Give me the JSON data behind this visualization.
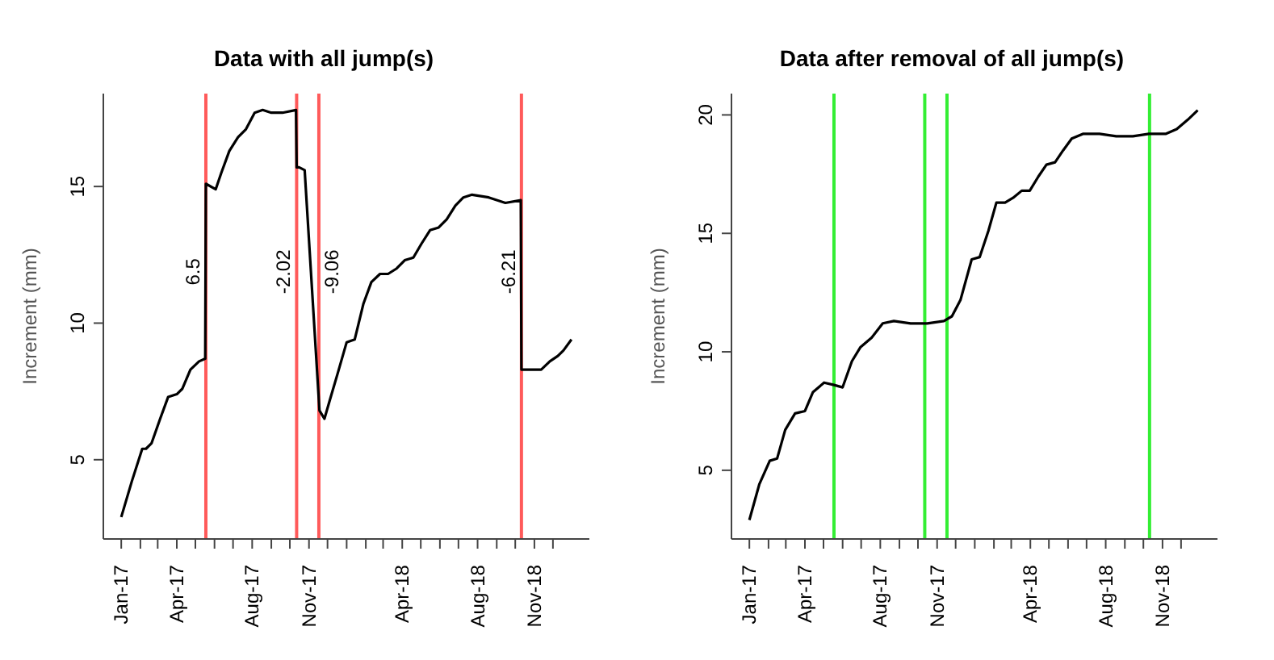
{
  "chart_data": [
    {
      "type": "line",
      "title": "Data with all jump(s)",
      "ylabel": "Increment (mm)",
      "color": "#000000",
      "line_style": "solid",
      "x": [
        "2017-01-01",
        "2017-01-18",
        "2017-02-04",
        "2017-02-10",
        "2017-02-19",
        "2017-03-05",
        "2017-03-18",
        "2017-04-01",
        "2017-04-10",
        "2017-04-23",
        "2017-05-07",
        "2017-05-17",
        "2017-05-18",
        "2017-06-03",
        "2017-06-12",
        "2017-06-25",
        "2017-07-09",
        "2017-07-22",
        "2017-08-05",
        "2017-08-18",
        "2017-09-01",
        "2017-09-19",
        "2017-10-11",
        "2017-10-12",
        "2017-10-16",
        "2017-10-25",
        "2017-11-18",
        "2017-11-26",
        "2017-12-05",
        "2017-12-18",
        "2018-01-01",
        "2018-01-14",
        "2018-01-28",
        "2018-02-10",
        "2018-02-24",
        "2018-03-09",
        "2018-03-23",
        "2018-04-05",
        "2018-04-19",
        "2018-05-02",
        "2018-05-16",
        "2018-05-30",
        "2018-06-12",
        "2018-06-26",
        "2018-07-09",
        "2018-07-23",
        "2018-08-19",
        "2018-09-15",
        "2018-10-10",
        "2018-10-11",
        "2018-11-12",
        "2018-11-26",
        "2018-12-09",
        "2018-12-18",
        "2018-12-31"
      ],
      "values": [
        2.9,
        4.2,
        5.4,
        5.4,
        5.6,
        6.5,
        7.3,
        7.4,
        7.6,
        8.3,
        8.6,
        8.7,
        15.1,
        14.9,
        15.5,
        16.3,
        16.8,
        17.1,
        17.7,
        17.8,
        17.7,
        17.7,
        17.8,
        15.7,
        15.7,
        15.6,
        6.8,
        6.5,
        7.2,
        8.2,
        9.3,
        9.4,
        10.7,
        11.5,
        11.8,
        11.8,
        12.0,
        12.3,
        12.4,
        12.9,
        13.4,
        13.5,
        13.8,
        14.3,
        14.6,
        14.7,
        14.6,
        14.4,
        14.5,
        8.3,
        8.3,
        8.6,
        8.8,
        9.0,
        9.4
      ],
      "xlim": [
        "2016-12-03",
        "2019-01-29"
      ],
      "ylim": [
        2.1,
        18.4
      ],
      "yticks": [
        5,
        10,
        15
      ],
      "xticks": [
        {
          "value": "2017-01",
          "label": "Jan-17"
        },
        {
          "value": "2017-02",
          "label": null
        },
        {
          "value": "2017-03",
          "label": null
        },
        {
          "value": "2017-04",
          "label": "Apr-17"
        },
        {
          "value": "2017-05",
          "label": null
        },
        {
          "value": "2017-06",
          "label": null
        },
        {
          "value": "2017-07",
          "label": null
        },
        {
          "value": "2017-08",
          "label": "Aug-17"
        },
        {
          "value": "2017-09",
          "label": null
        },
        {
          "value": "2017-10",
          "label": null
        },
        {
          "value": "2017-11",
          "label": "Nov-17"
        },
        {
          "value": "2017-12",
          "label": null
        },
        {
          "value": "2018-01",
          "label": null
        },
        {
          "value": "2018-02",
          "label": null
        },
        {
          "value": "2018-03",
          "label": null
        },
        {
          "value": "2018-04",
          "label": "Apr-18"
        },
        {
          "value": "2018-05",
          "label": null
        },
        {
          "value": "2018-06",
          "label": null
        },
        {
          "value": "2018-07",
          "label": null
        },
        {
          "value": "2018-08",
          "label": "Aug-18"
        },
        {
          "value": "2018-09",
          "label": null
        },
        {
          "value": "2018-10",
          "label": null
        },
        {
          "value": "2018-11",
          "label": "Nov-18"
        },
        {
          "value": "2018-12",
          "label": null
        }
      ],
      "ref_lines": [
        {
          "axis": "x",
          "value": "2017-05-18",
          "label": "6.5",
          "color": "#ff5a5a"
        },
        {
          "axis": "x",
          "value": "2017-10-12",
          "label": "-2.02",
          "color": "#ff5a5a"
        },
        {
          "axis": "x",
          "value": "2017-11-17",
          "label": "-9.06",
          "color": "#ff5a5a"
        },
        {
          "axis": "x",
          "value": "2018-10-11",
          "label": "-6.21",
          "color": "#ff5a5a"
        }
      ]
    },
    {
      "type": "line",
      "title": "Data after removal of all jump(s)",
      "ylabel": "Increment (mm)",
      "color": "#000000",
      "line_style": "solid",
      "x": [
        "2017-01-01",
        "2017-01-17",
        "2017-02-03",
        "2017-02-15",
        "2017-02-28",
        "2017-03-16",
        "2017-04-01",
        "2017-04-14",
        "2017-05-02",
        "2017-05-18",
        "2017-06-01",
        "2017-06-16",
        "2017-06-30",
        "2017-07-18",
        "2017-08-05",
        "2017-08-23",
        "2017-09-19",
        "2017-10-16",
        "2017-11-12",
        "2017-11-25",
        "2017-12-09",
        "2017-12-27",
        "2018-01-09",
        "2018-01-23",
        "2018-02-05",
        "2018-02-19",
        "2018-03-04",
        "2018-03-18",
        "2018-03-31",
        "2018-04-14",
        "2018-04-27",
        "2018-05-11",
        "2018-05-24",
        "2018-06-07",
        "2018-06-25",
        "2018-07-22",
        "2018-08-18",
        "2018-09-14",
        "2018-10-10",
        "2018-11-06",
        "2018-11-24",
        "2018-12-12",
        "2018-12-28"
      ],
      "values": [
        2.9,
        4.4,
        5.4,
        5.5,
        6.7,
        7.4,
        7.5,
        8.3,
        8.7,
        8.6,
        8.5,
        9.6,
        10.2,
        10.6,
        11.2,
        11.3,
        11.2,
        11.2,
        11.3,
        11.5,
        12.2,
        13.9,
        14.0,
        15.1,
        16.3,
        16.3,
        16.5,
        16.8,
        16.8,
        17.4,
        17.9,
        18.0,
        18.5,
        19.0,
        19.2,
        19.2,
        19.1,
        19.1,
        19.2,
        19.2,
        19.4,
        19.8,
        20.2
      ],
      "xlim": [
        "2016-12-03",
        "2019-01-29"
      ],
      "ylim": [
        2.1,
        20.9
      ],
      "yticks": [
        5,
        10,
        15,
        20
      ],
      "xticks": [
        {
          "value": "2017-01",
          "label": "Jan-17"
        },
        {
          "value": "2017-02",
          "label": null
        },
        {
          "value": "2017-03",
          "label": null
        },
        {
          "value": "2017-04",
          "label": "Apr-17"
        },
        {
          "value": "2017-05",
          "label": null
        },
        {
          "value": "2017-06",
          "label": null
        },
        {
          "value": "2017-07",
          "label": null
        },
        {
          "value": "2017-08",
          "label": "Aug-17"
        },
        {
          "value": "2017-09",
          "label": null
        },
        {
          "value": "2017-10",
          "label": null
        },
        {
          "value": "2017-11",
          "label": "Nov-17"
        },
        {
          "value": "2017-12",
          "label": null
        },
        {
          "value": "2018-01",
          "label": null
        },
        {
          "value": "2018-02",
          "label": null
        },
        {
          "value": "2018-03",
          "label": null
        },
        {
          "value": "2018-04",
          "label": "Apr-18"
        },
        {
          "value": "2018-05",
          "label": null
        },
        {
          "value": "2018-06",
          "label": null
        },
        {
          "value": "2018-07",
          "label": null
        },
        {
          "value": "2018-08",
          "label": "Aug-18"
        },
        {
          "value": "2018-09",
          "label": null
        },
        {
          "value": "2018-10",
          "label": null
        },
        {
          "value": "2018-11",
          "label": "Nov-18"
        },
        {
          "value": "2018-12",
          "label": null
        }
      ],
      "ref_lines": [
        {
          "axis": "x",
          "value": "2017-05-18",
          "color": "#33ee33"
        },
        {
          "axis": "x",
          "value": "2017-10-12",
          "color": "#33ee33"
        },
        {
          "axis": "x",
          "value": "2017-11-17",
          "color": "#33ee33"
        },
        {
          "axis": "x",
          "value": "2018-10-11",
          "color": "#33ee33"
        }
      ]
    }
  ]
}
